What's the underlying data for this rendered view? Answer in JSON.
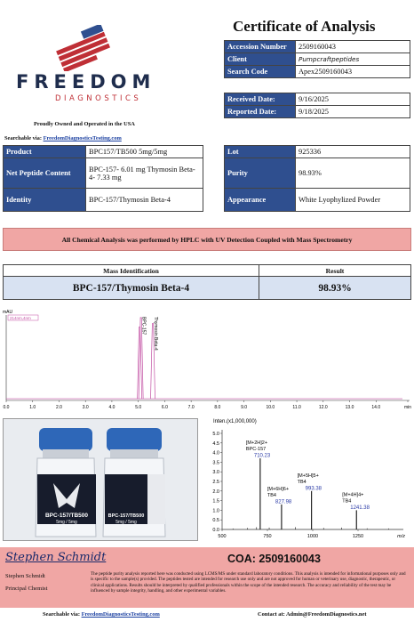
{
  "header": {
    "title": "Certificate of Analysis",
    "logo_main": "FREEDOM",
    "logo_sub": "DIAGNOSTICS",
    "owned": "Proudly Owned and Operated in the USA",
    "searchable_label": "Searchable via:",
    "searchable_link": "FreedomDiagnosticsTesting.com"
  },
  "accession": [
    {
      "label": "Accession Number",
      "value": "2509160043"
    },
    {
      "label": "Client",
      "value": "Pumpcraftpeptides"
    },
    {
      "label": "Search Code",
      "value": "Apex2509160043"
    }
  ],
  "dates": [
    {
      "label": "Received Date:",
      "value": "9/16/2025"
    },
    {
      "label": "Reported Date:",
      "value": "9/18/2025"
    }
  ],
  "product": {
    "product_label": "Product",
    "product_value": "BPC157/TB500 5mg/5mg",
    "content_label": "Net Peptide Content",
    "content_value": "BPC-157- 6.01 mg Thymosin Beta-4- 7.33 mg",
    "identity_label": "Identity",
    "identity_value": "BPC-157/Thymosin Beta-4"
  },
  "lot": {
    "lot_label": "Lot",
    "lot_value": "925336",
    "purity_label": "Purity",
    "purity_value": "98.93%",
    "appearance_label": "Appearance",
    "appearance_value": "White Lyophylized Powder"
  },
  "banner": "All Chemical Analysis was performed by HPLC with UV Detection Coupled with Mass Spectrometry",
  "mass": {
    "col1": "Mass Identification",
    "col2": "Result",
    "ident": "BPC-157/Thymosin Beta-4",
    "result": "98.93%"
  },
  "chart_data": [
    {
      "type": "line",
      "ylabel": "mAU",
      "legend": "214nm,4nm",
      "xlim": [
        0.0,
        15.0
      ],
      "x_ticks": [
        "0.0",
        "1.0",
        "2.0",
        "3.0",
        "4.0",
        "5.0",
        "6.0",
        "7.0",
        "8.0",
        "9.0",
        "10.0",
        "11.0",
        "12.0",
        "13.0",
        "14.0",
        "min"
      ],
      "peaks": [
        {
          "label": "BPC-157",
          "x": 5.1,
          "height": 0.97
        },
        {
          "label": "Thymosin Beta-4",
          "x": 5.55,
          "height": 0.9
        }
      ],
      "secondary_peak": {
        "x": 5.05,
        "height": 0.86
      }
    },
    {
      "type": "bar",
      "title": "Inten.(x1,000,000)",
      "xlabel": "m/z",
      "xlim": [
        500,
        1500
      ],
      "x_ticks": [
        "500",
        "750",
        "1000",
        "1250"
      ],
      "ylim": [
        0.0,
        5.0
      ],
      "y_ticks": [
        "0.0",
        "0.5",
        "1.0",
        "1.5",
        "2.0",
        "2.5",
        "3.0",
        "3.5",
        "4.0",
        "4.5",
        "5.0"
      ],
      "peaks": [
        {
          "x": 710.23,
          "y": 3.7,
          "label": "[M+2H]2+",
          "name": "BPC-157",
          "value_label": "710.23"
        },
        {
          "x": 827.98,
          "y": 1.3,
          "label": "[M+6H]6+",
          "name": "TB4",
          "value_label": "827.98"
        },
        {
          "x": 993.38,
          "y": 2.0,
          "label": "[M+5H]5+",
          "name": "TB4",
          "value_label": "993.38"
        },
        {
          "x": 1241.38,
          "y": 1.0,
          "label": "[M+4H]4+",
          "name": "TB4",
          "value_label": "1241.38"
        }
      ],
      "minor_peaks": [
        {
          "x": 560,
          "y": 0.05
        },
        {
          "x": 640,
          "y": 0.08
        },
        {
          "x": 690,
          "y": 0.12
        },
        {
          "x": 760,
          "y": 0.1
        },
        {
          "x": 905,
          "y": 0.12
        },
        {
          "x": 1060,
          "y": 0.08
        },
        {
          "x": 1160,
          "y": 0.1
        },
        {
          "x": 1300,
          "y": 0.06
        },
        {
          "x": 1420,
          "y": 0.05
        }
      ]
    }
  ],
  "vials": [
    {
      "label_top": "BPC-157/TB500",
      "label_mid": "5mg / 5mg"
    },
    {
      "label_top": "BPC-157/TB500",
      "label_mid": "5mg / 5mg"
    }
  ],
  "footer": {
    "signature": "Stephen Schmidt",
    "name": "Stephen Schmidt",
    "role": "Principal Chemist",
    "coa": "COA: 2509160043",
    "disclaimer": "The peptide purity analysis reported here was conducted using LCMS/MS under standard laboratory conditions. This analysis is intended for informational purposes only and is specific to the sample(s) provided. The peptides tested are intended for research use only and are not approved for human or veterinary use, diagnostic, therapeutic, or clinical applications. Results should be interpreted by qualified professionals within the scope of the intended research. The accuracy and reliability of the test may be influenced by sample integrity, handling, and other experimental variables.",
    "searchable_label": "Searchable via:",
    "searchable_link": "FreedomDiagnosticsTesting.com",
    "contact": "Contact at: Admin@FreedomDiagnostics.net"
  },
  "colors": {
    "navy": "#2f4f8f",
    "light_blue": "#d8e2f2",
    "pink": "#f0a6a4",
    "trace": "#c24fa3"
  }
}
